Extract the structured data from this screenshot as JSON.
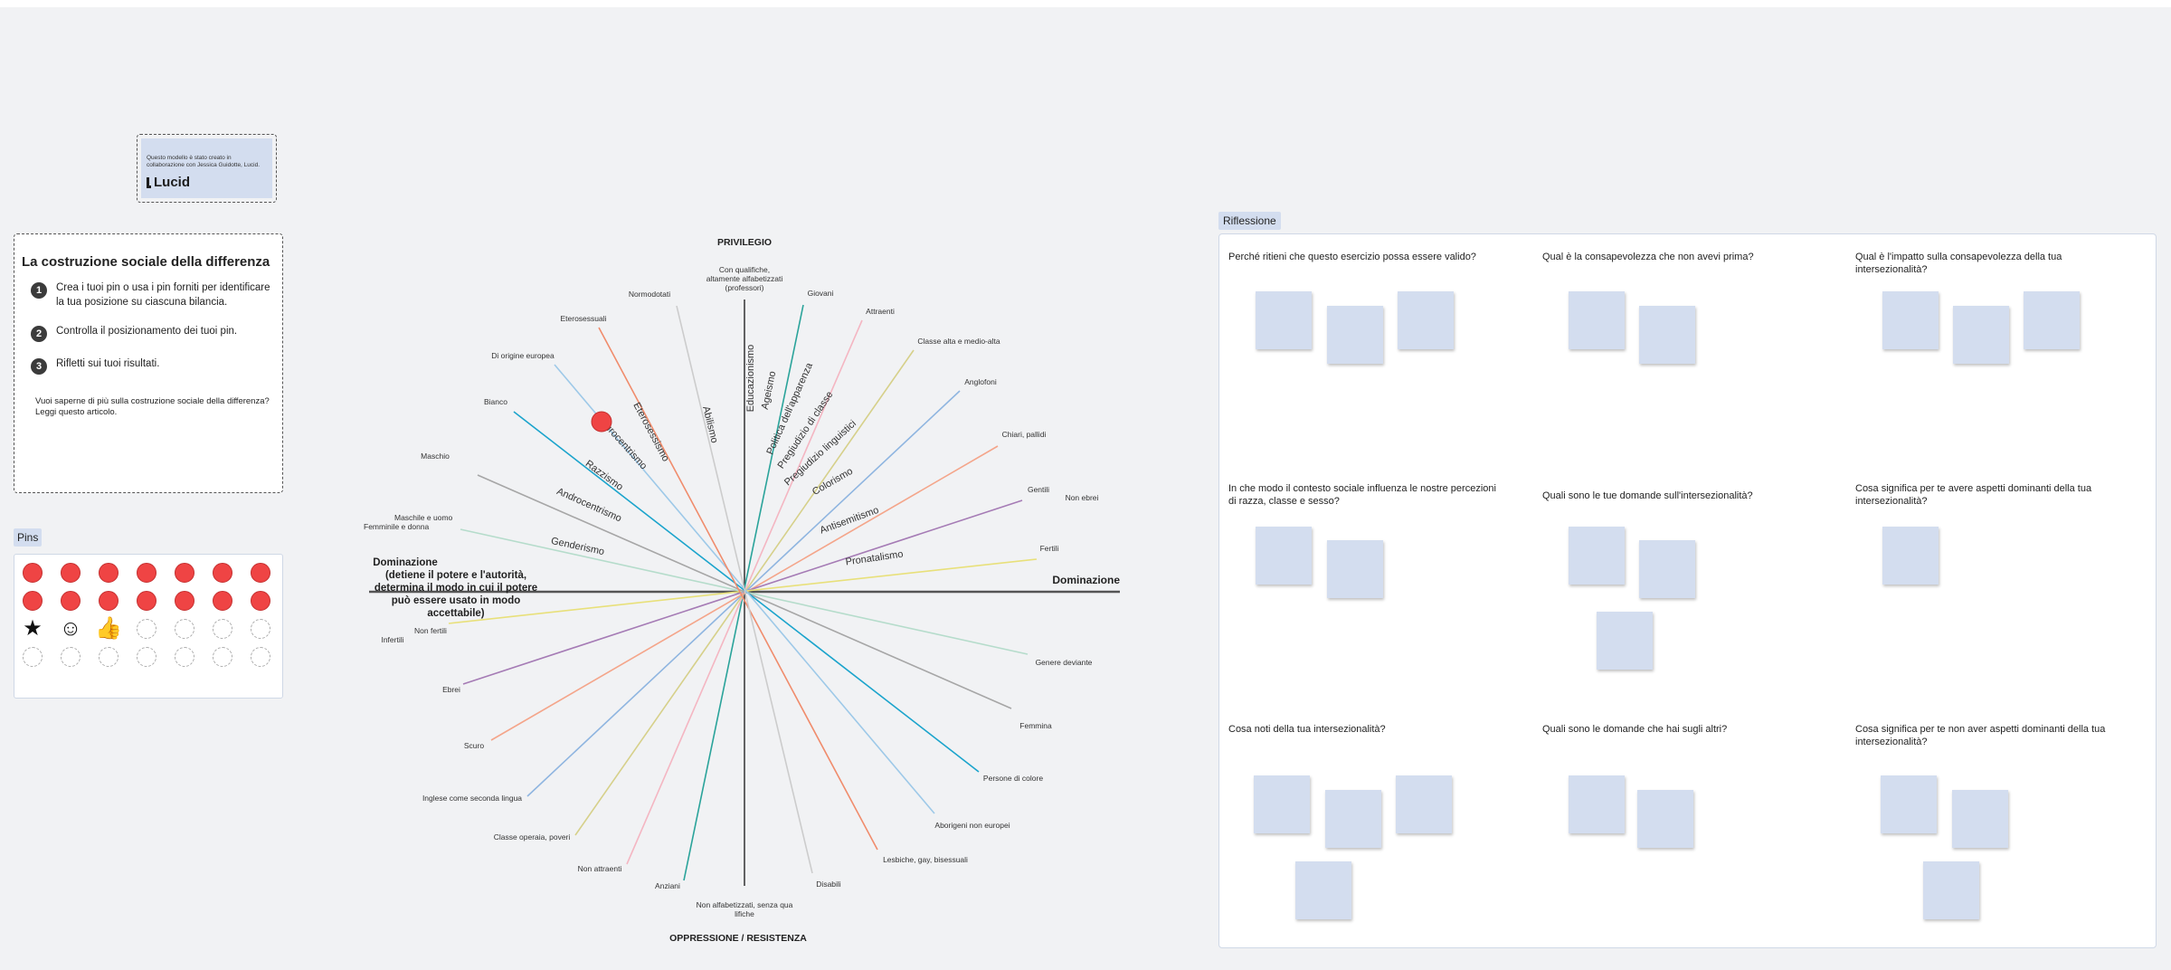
{
  "credit": {
    "text": "Questo modello è stato creato in collaborazione con Jessica Guidotte, Lucid.",
    "logo": "Lucid"
  },
  "instructions": {
    "title": "La costruzione sociale della differenza",
    "steps": [
      {
        "num": "1",
        "text": "Crea i tuoi pin o usa i pin forniti per identificare la tua posizione su ciascuna bilancia."
      },
      {
        "num": "2",
        "text": "Controlla il posizionamento dei tuoi pin."
      },
      {
        "num": "3",
        "text": "Rifletti sui tuoi risultati."
      }
    ],
    "more": "Vuoi saperne di più sulla costruzione sociale della differenza? Leggi questo articolo."
  },
  "pins": {
    "label": "Pins",
    "rows": [
      [
        "red",
        "red",
        "red",
        "red",
        "red",
        "red",
        "red"
      ],
      [
        "red",
        "red",
        "red",
        "red",
        "red",
        "red",
        "red"
      ],
      [
        "star-icon",
        "smiley-icon",
        "thumbs-up-icon",
        "empty",
        "empty",
        "empty",
        "empty"
      ],
      [
        "empty",
        "empty",
        "empty",
        "empty",
        "empty",
        "empty",
        "empty"
      ]
    ],
    "red_color": "#ef4444"
  },
  "diagram": {
    "top_label": "PRIVILEGIO",
    "bottom_label": "OPPRESSIONE / RESISTENZA",
    "right_label": "Dominazione",
    "left_label": "Dominazione\n(detiene il potere e l'autorità,\ndetermina il modo in cui il potere\npuò essere usato in modo\naccettabile)",
    "spokes": [
      {
        "name": "Educazionismo",
        "top": "Con qualifiche, altamente alfabetizzati (professori)",
        "bottom": "Non alfabetizzati, senza qualifiche",
        "color": "#333333"
      },
      {
        "name": "Ageismo",
        "top": "Giovani",
        "bottom": "Anziani",
        "color": "#2aa39a"
      },
      {
        "name": "Politica dell'apparenza",
        "top": "Attraenti",
        "bottom": "Non attraenti",
        "color": "#f4b6c2"
      },
      {
        "name": "Pregiudizio di classe",
        "top": "Classe alta e medio-alta",
        "bottom": "Classe operaia, poveri",
        "color": "#d6d08a"
      },
      {
        "name": "Pregiudizio linguistici",
        "top": "Anglofoni",
        "bottom": "Inglese come seconda lingua",
        "color": "#8fb5e0"
      },
      {
        "name": "Colorismo",
        "top": "Chiari, pallidi",
        "bottom": "Scuro",
        "color": "#f4a58a"
      },
      {
        "name": "Antisemitismo",
        "top": "Gentili",
        "top2": "Non ebrei",
        "bottom": "Ebrei",
        "color": "#a57bb5"
      },
      {
        "name": "Pronatalismo",
        "top": "Fertili",
        "bottom": "Non fertili",
        "bottom2": "Infertili",
        "color": "#e8e07a"
      },
      {
        "name": "Genderismo",
        "top": "Maschile e uomo Femminile e donna",
        "bottom": "Genere deviante",
        "color": "#b5dccb"
      },
      {
        "name": "Androcentrismo",
        "top": "Maschio",
        "bottom": "Femmina",
        "color": "#a6a6a6"
      },
      {
        "name": "Razzismo",
        "top": "Bianco",
        "bottom": "Persone di colore",
        "color": "#1ba4cc"
      },
      {
        "name": "Eurocentrismo",
        "top": "Di origine europea",
        "bottom": "Aborigeni non europei",
        "color": "#9ec9e8"
      },
      {
        "name": "Eterosessismo",
        "top": "Eterosessuali",
        "bottom": "Lesbiche, gay, bisessuali",
        "color": "#f08c6c"
      },
      {
        "name": "Abilismo",
        "top": "Normodotati",
        "bottom": "Disabili",
        "color": "#cccccc"
      }
    ],
    "placed_pin_color": "#ef4444"
  },
  "reflection": {
    "label": "Riflessione",
    "questions": [
      "Perché ritieni che questo esercizio possa essere valido?",
      "Qual è la consapevolezza che non avevi prima?",
      "Qual è l'impatto sulla consapevolezza della tua intersezionalità?",
      "In che modo il contesto sociale influenza le nostre percezioni di razza, classe e sesso?",
      "Quali sono le tue domande sull'intersezionalità?",
      "Cosa significa per te avere aspetti dominanti della tua intersezionalità?",
      "Cosa noti della tua intersezionalità?",
      "Quali sono le domande che hai sugli altri?",
      "Cosa significa per te non aver aspetti dominanti della tua intersezionalità?"
    ]
  }
}
